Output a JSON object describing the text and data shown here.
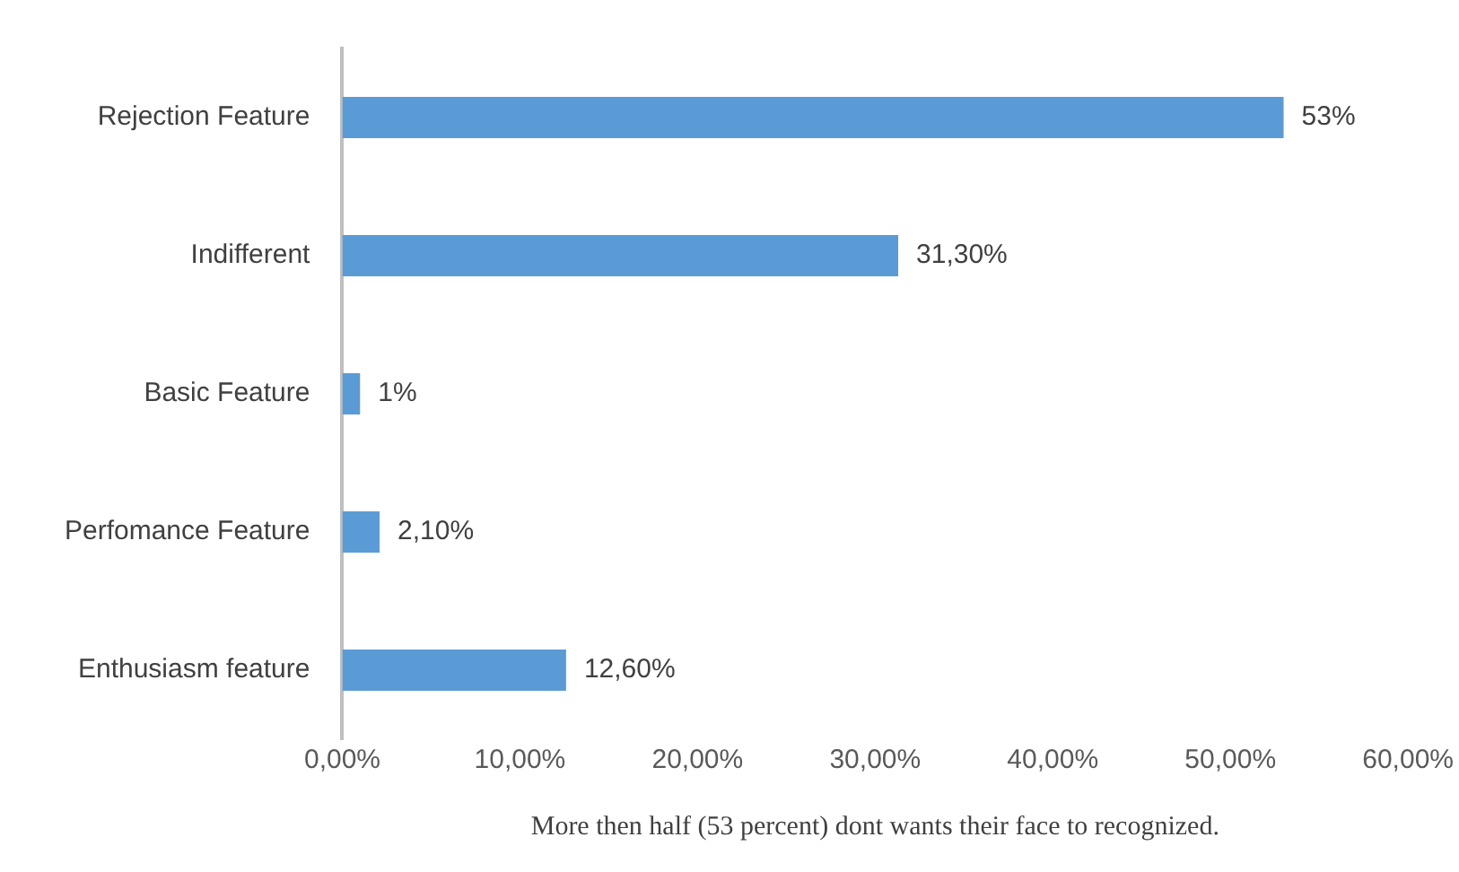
{
  "chart_data": {
    "type": "bar",
    "orientation": "horizontal",
    "categories": [
      "Rejection Feature",
      "Indifferent",
      "Basic Feature",
      "Perfomance Feature",
      "Enthusiasm feature"
    ],
    "values": [
      53,
      31.3,
      1,
      2.1,
      12.6
    ],
    "value_labels": [
      "53%",
      "31,30%",
      "1%",
      "2,10%",
      "12,60%"
    ],
    "color": "#5b9bd5",
    "xlim": [
      0,
      60
    ],
    "xticks": [
      {
        "value": 0,
        "label": "0,00%"
      },
      {
        "value": 10,
        "label": "10,00%"
      },
      {
        "value": 20,
        "label": "20,00%"
      },
      {
        "value": 30,
        "label": "30,00%"
      },
      {
        "value": 40,
        "label": "40,00%"
      },
      {
        "value": 50,
        "label": "50,00%"
      },
      {
        "value": 60,
        "label": "60,00%"
      }
    ],
    "xlabel": "More then half (53 percent) dont wants their face to recognized.",
    "grid": false,
    "legend": false
  }
}
